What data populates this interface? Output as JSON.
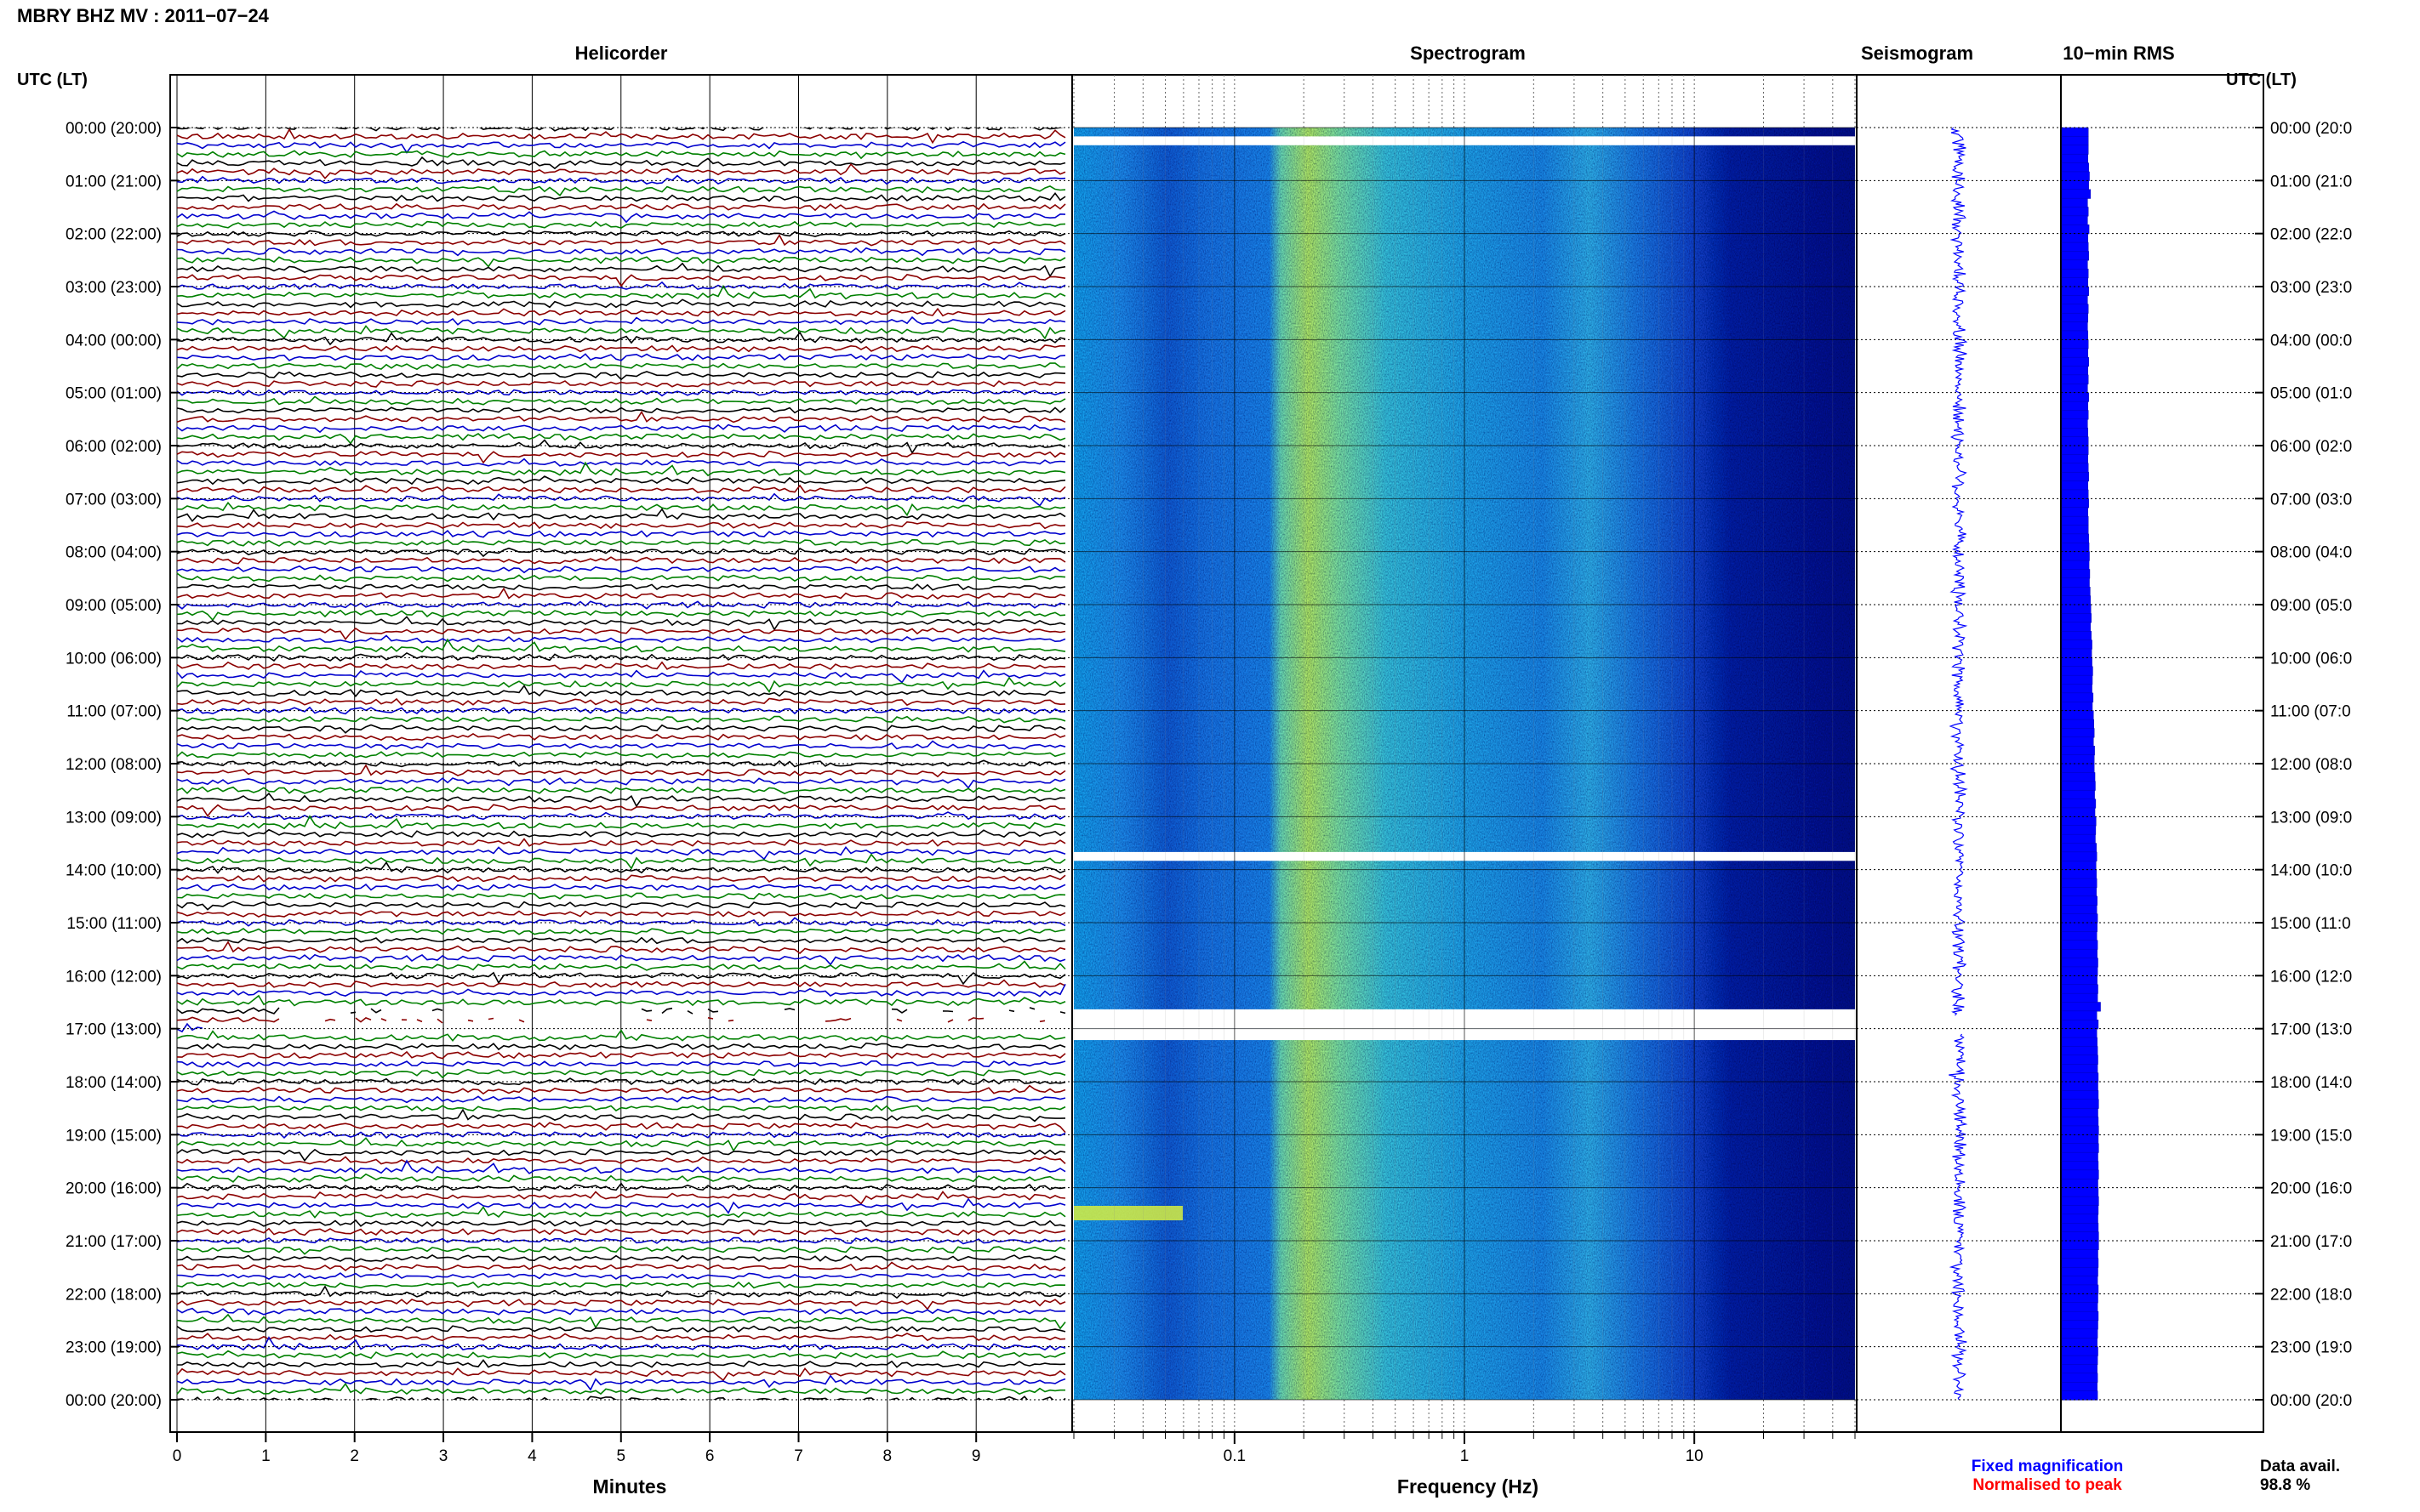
{
  "header": {
    "title": "MBRY BHZ MV : 2011−07−24",
    "tz_left": "UTC (LT)",
    "tz_right": "UTC (LT)"
  },
  "panels": {
    "helicorder": "Helicorder",
    "spectrogram": "Spectrogram",
    "seismogram": "Seismogram",
    "rms": "10−min RMS"
  },
  "time_labels": [
    "00:00 (20:00)",
    "01:00 (21:00)",
    "02:00 (22:00)",
    "03:00 (23:00)",
    "04:00 (00:00)",
    "05:00 (01:00)",
    "06:00 (02:00)",
    "07:00 (03:00)",
    "08:00 (04:00)",
    "09:00 (05:00)",
    "10:00 (06:00)",
    "11:00 (07:00)",
    "12:00 (08:00)",
    "13:00 (09:00)",
    "14:00 (10:00)",
    "15:00 (11:00)",
    "16:00 (12:00)",
    "17:00 (13:00)",
    "18:00 (14:00)",
    "19:00 (15:00)",
    "20:00 (16:00)",
    "21:00 (17:00)",
    "22:00 (18:00)",
    "23:00 (19:00)",
    "00:00 (20:00)"
  ],
  "time_labels_right": [
    "00:00 (20:0",
    "01:00 (21:0",
    "02:00 (22:0",
    "03:00 (23:0",
    "04:00 (00:0",
    "05:00 (01:0",
    "06:00 (02:0",
    "07:00 (03:0",
    "08:00 (04:0",
    "09:00 (05:0",
    "10:00 (06:0",
    "11:00 (07:0",
    "12:00 (08:0",
    "13:00 (09:0",
    "14:00 (10:0",
    "15:00 (11:0",
    "16:00 (12:0",
    "17:00 (13:0",
    "18:00 (14:0",
    "19:00 (15:0",
    "20:00 (16:0",
    "21:00 (17:0",
    "22:00 (18:0",
    "23:00 (19:0",
    "00:00 (20:0"
  ],
  "x_axes": {
    "minutes_label": "Minutes",
    "minute_ticks": [
      "0",
      "1",
      "2",
      "3",
      "4",
      "5",
      "6",
      "7",
      "8",
      "9"
    ],
    "frequency_label": "Frequency (Hz)",
    "frequency_ticks": [
      "0.1",
      "1",
      "10"
    ]
  },
  "legend": {
    "fixed": "Fixed magnification",
    "normalised": "Normalised to peak",
    "fixed_color": "#0000ff",
    "normalised_color": "#ff0000"
  },
  "data_availability": {
    "label": "Data avail.",
    "value": "98.8 %"
  },
  "colors": {
    "trace_cycle": [
      "#000000",
      "#8b0000",
      "#0000cd",
      "#008000"
    ],
    "spectrogram_low": "#000e8c",
    "spectrogram_high": "#c8f050",
    "seismogram": "#0000ff",
    "rms_bar": "#0000ff"
  },
  "chart_data": [
    {
      "type": "line",
      "title": "Helicorder",
      "xlabel": "Minutes",
      "xlim": [
        0,
        10
      ],
      "rows_per_hour": 6,
      "hours": 24,
      "gaps": [
        {
          "start": "16:40",
          "end": "17:00"
        },
        {
          "start": "17:00",
          "end": "17:10"
        }
      ]
    },
    {
      "type": "heatmap",
      "title": "Spectrogram",
      "xlabel": "Frequency (Hz)",
      "x_scale": "log",
      "xlim": [
        0.02,
        50
      ],
      "ylim_time": [
        "00:00",
        "24:00"
      ],
      "gaps": [
        {
          "start": "00:10",
          "end": "00:20"
        },
        {
          "start": "13:40",
          "end": "13:50"
        },
        {
          "start": "16:40",
          "end": "17:00"
        },
        {
          "start": "17:00",
          "end": "17:10"
        }
      ]
    },
    {
      "type": "line",
      "title": "Seismogram",
      "gaps": [
        {
          "start": "16:40",
          "end": "17:10"
        }
      ]
    },
    {
      "type": "bar",
      "title": "10−min RMS",
      "orientation": "horizontal",
      "bins": "10-min",
      "values_relative": [
        0.72,
        0.72,
        0.72,
        0.71,
        0.73,
        0.75,
        0.73,
        0.78,
        0.7,
        0.72,
        0.7,
        0.74,
        0.71,
        0.72,
        0.73,
        0.7,
        0.72,
        0.71,
        0.73,
        0.7,
        0.72,
        0.71,
        0.7,
        0.71,
        0.72,
        0.71,
        0.73,
        0.71,
        0.72,
        0.7,
        0.73,
        0.71,
        0.72,
        0.7,
        0.71,
        0.72,
        0.72,
        0.71,
        0.72,
        0.73,
        0.71,
        0.72,
        0.73,
        0.71,
        0.72,
        0.72,
        0.73,
        0.74,
        0.75,
        0.74,
        0.76,
        0.75,
        0.77,
        0.78,
        0.79,
        0.8,
        0.78,
        0.8,
        0.82,
        0.81,
        0.82,
        0.84,
        0.83,
        0.82,
        0.85,
        0.83,
        0.86,
        0.87,
        0.88,
        0.86,
        0.89,
        0.88,
        0.88,
        0.9,
        0.91,
        0.89,
        0.92,
        0.9,
        0.93,
        0.92,
        0.91,
        0.94,
        0.95,
        0.93,
        0.94,
        0.95,
        0.94,
        0.96,
        0.95,
        0.97,
        0.96,
        0.95,
        0.97,
        0.96,
        0.98,
        0.97,
        0.96,
        0.98,
        0.97,
        1.05,
        0.95,
        0.99,
        0.95,
        0.96,
        0.97,
        0.98,
        0.97,
        0.99,
        0.98,
        0.99,
        1.0,
        0.98,
        0.99,
        1.0,
        0.99,
        1.0,
        0.98,
        0.99,
        1.0,
        0.98,
        0.99,
        1.0,
        0.99,
        0.98,
        0.99,
        1.0,
        1.0,
        0.98,
        0.99,
        0.98,
        0.97,
        0.99,
        0.98,
        0.97,
        0.99,
        0.98,
        0.97,
        0.96,
        0.98,
        0.97,
        0.96,
        0.97,
        0.96,
        0.97
      ]
    }
  ]
}
